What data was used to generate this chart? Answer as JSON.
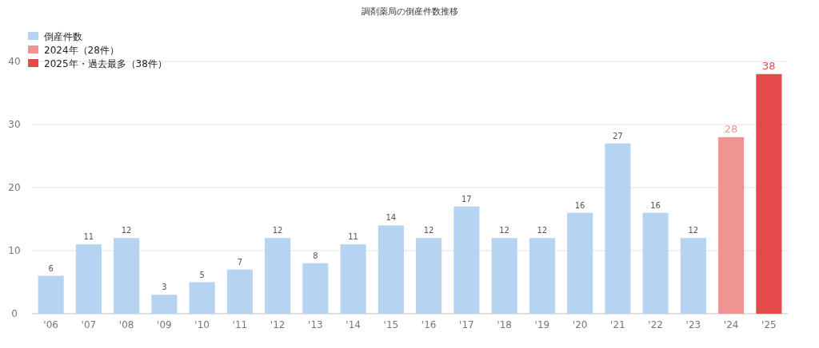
{
  "chart_data": {
    "type": "bar",
    "title": "調剤薬局の倒産件数推移",
    "categories": [
      "'06",
      "'07",
      "'08",
      "'09",
      "'10",
      "'11",
      "'12",
      "'13",
      "'14",
      "'15",
      "'16",
      "'17",
      "'18",
      "'19",
      "'20",
      "'21",
      "'22",
      "'23",
      "'24",
      "'25"
    ],
    "series": [
      {
        "name": "倒産件数",
        "color": "#b6d4f2",
        "values": [
          6,
          11,
          12,
          3,
          5,
          7,
          12,
          8,
          11,
          14,
          12,
          17,
          12,
          12,
          16,
          27,
          16,
          12,
          null,
          null
        ]
      },
      {
        "name": "2024年（28件）",
        "color": "#ef9491",
        "values": [
          null,
          null,
          null,
          null,
          null,
          null,
          null,
          null,
          null,
          null,
          null,
          null,
          null,
          null,
          null,
          null,
          null,
          null,
          28,
          null
        ]
      },
      {
        "name": "2025年・過去最多（38件）",
        "color": "#e34b4b",
        "values": [
          null,
          null,
          null,
          null,
          null,
          null,
          null,
          null,
          null,
          null,
          null,
          null,
          null,
          null,
          null,
          null,
          null,
          null,
          null,
          38
        ]
      }
    ],
    "ylim": [
      0,
      40
    ],
    "yticks": [
      0,
      10,
      20,
      30,
      40
    ],
    "grid": "y",
    "legend": "top left",
    "data_labels": true
  }
}
